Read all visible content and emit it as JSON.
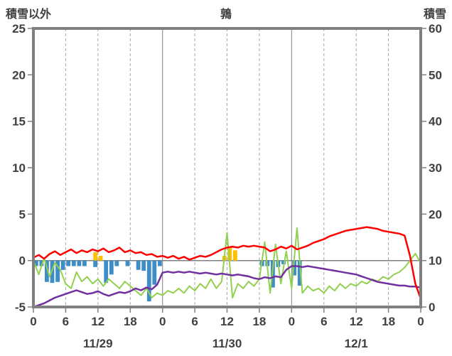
{
  "header": {
    "left_axis_title": "積雪以外",
    "chart_title": "鶉",
    "right_axis_title": "積雪"
  },
  "chart_data": {
    "type": "line",
    "title": "鶉",
    "style": {
      "frame": "#7f7f7f",
      "grid_dashed": "#a6a6a6",
      "grid_solid": "#808080",
      "zero_line": "#808080",
      "text": "#404040",
      "background": "#ffffff"
    },
    "left_axis": {
      "label": "積雪以外",
      "min": -5,
      "max": 25,
      "ticks": [
        25,
        20,
        15,
        10,
        5,
        0,
        -5
      ]
    },
    "right_axis": {
      "label": "積雪",
      "min": 0,
      "max": 60,
      "ticks": [
        60,
        50,
        40,
        30,
        20,
        10,
        0
      ]
    },
    "x_axis": {
      "hours_total": 72,
      "tick_interval": 6,
      "tick_labels": [
        "0",
        "6",
        "12",
        "18",
        "0",
        "6",
        "12",
        "18",
        "0",
        "6",
        "12",
        "18",
        "0"
      ],
      "day_labels": [
        "11/29",
        "11/30",
        "12/1"
      ],
      "grid": "dashed-6h-solid-24h"
    },
    "series": [
      {
        "name": "precipitation-bars",
        "type": "bar",
        "axis": "left",
        "color": "#3d8dc6",
        "values": [
          -0.6,
          -0.6,
          -2.3,
          -2.4,
          -2.3,
          -1.0,
          -0.6,
          -0.6,
          -0.6,
          -0.6,
          0,
          -0.7,
          0,
          -2.4,
          -1.5,
          -0.6,
          0,
          -0.6,
          0,
          -1.0,
          -1.1,
          -4.4,
          -2.6,
          -0.6,
          0,
          0,
          0,
          0,
          0,
          0,
          0,
          0,
          0,
          0,
          0,
          0,
          0,
          0,
          0,
          0,
          0,
          0,
          -0.6,
          -0.6,
          -2.9,
          -0.7,
          -0.4,
          0,
          -1.6,
          -2.7,
          0,
          0,
          0,
          0,
          0,
          0,
          0,
          0,
          0,
          0,
          0,
          0,
          0,
          0,
          0,
          0,
          0,
          0,
          0,
          0,
          0,
          0
        ]
      },
      {
        "name": "snowfall-bars",
        "type": "bar",
        "axis": "left",
        "color": "#ffc000",
        "values": [
          0,
          0,
          0,
          0,
          0,
          0,
          0,
          0,
          0,
          0,
          0,
          0.9,
          0.5,
          0,
          0,
          0,
          0,
          0,
          0,
          0,
          0,
          0,
          0,
          0,
          0,
          0,
          0,
          0,
          0,
          0,
          0,
          0,
          0,
          0,
          0,
          0.5,
          1.5,
          1.1,
          0,
          0,
          0,
          0,
          0,
          0,
          0,
          0,
          0,
          0,
          0,
          0,
          0,
          0,
          0,
          0,
          0,
          0,
          0,
          0,
          0,
          0,
          0,
          0,
          0,
          0,
          0,
          0,
          0,
          0,
          0,
          0,
          0,
          0
        ]
      },
      {
        "name": "snow-depth-line",
        "type": "line",
        "axis": "right",
        "color": "#92d050",
        "width": 2,
        "values": [
          10,
          7,
          10.5,
          6.5,
          9.5,
          8,
          5,
          4,
          7.5,
          5.5,
          6.5,
          5,
          6,
          4.5,
          6,
          5,
          4,
          5.5,
          4.5,
          3.5,
          2.5,
          4,
          2,
          3,
          2.5,
          3.5,
          3,
          4,
          3,
          4.5,
          3.5,
          5,
          4,
          6,
          4,
          5.5,
          16,
          2,
          5,
          4,
          5.5,
          4.5,
          6,
          14,
          3,
          13.5,
          5,
          12,
          4,
          17,
          3,
          4.5,
          3.5,
          4,
          3,
          4.5,
          3.5,
          5,
          4,
          5,
          4.5,
          5.5,
          5,
          6,
          5.5,
          6.5,
          6,
          7,
          7.5,
          8.5,
          10,
          11.5,
          9.5
        ]
      },
      {
        "name": "temperature-secondary-line",
        "type": "line",
        "axis": "left",
        "color": "#7030a0",
        "width": 2.5,
        "values": [
          -5.0,
          -4.8,
          -4.6,
          -4.3,
          -4.0,
          -3.8,
          -3.6,
          -3.4,
          -3.2,
          -3.4,
          -3.6,
          -3.5,
          -3.3,
          -3.6,
          -3.8,
          -3.6,
          -3.4,
          -3.5,
          -3.3,
          -3.0,
          -3.2,
          -2.9,
          -3.1,
          -2.6,
          -1.3,
          -1.2,
          -1.3,
          -1.2,
          -1.3,
          -1.2,
          -1.3,
          -1.4,
          -1.3,
          -1.4,
          -1.5,
          -1.4,
          -1.5,
          -1.6,
          -1.5,
          -1.6,
          -1.7,
          -1.9,
          -2.0,
          -1.8,
          -1.9,
          -1.7,
          -1.8,
          -1.0,
          -0.6,
          -0.6,
          -0.7,
          -0.6,
          -0.7,
          -0.8,
          -0.9,
          -1.0,
          -1.1,
          -1.2,
          -1.3,
          -1.4,
          -1.5,
          -1.7,
          -1.9,
          -2.1,
          -2.3,
          -2.4,
          -2.5,
          -2.6,
          -2.7,
          -2.7,
          -2.8,
          -2.8,
          -2.9
        ]
      },
      {
        "name": "temperature-line",
        "type": "line",
        "axis": "left",
        "color": "#ff0000",
        "width": 2.5,
        "values": [
          0.3,
          0.6,
          0.2,
          0.7,
          1.0,
          0.6,
          0.9,
          1.2,
          0.8,
          1.1,
          0.9,
          1.2,
          1.0,
          1.3,
          0.9,
          1.1,
          1.4,
          0.9,
          1.1,
          0.8,
          0.9,
          0.6,
          0.7,
          0.4,
          0.5,
          0.3,
          0.5,
          0.2,
          0.4,
          0.1,
          0.3,
          0.5,
          0.4,
          0.6,
          0.9,
          1.2,
          1.4,
          1.5,
          1.4,
          1.6,
          1.5,
          1.6,
          1.5,
          1.4,
          1.0,
          1.2,
          1.5,
          1.3,
          1.6,
          1.2,
          1.4,
          1.6,
          1.9,
          2.1,
          2.3,
          2.6,
          2.8,
          3.0,
          3.2,
          3.3,
          3.4,
          3.5,
          3.6,
          3.5,
          3.4,
          3.2,
          3.1,
          3.0,
          2.9,
          2.7,
          0.5,
          -2.5,
          -4.1
        ]
      }
    ]
  }
}
